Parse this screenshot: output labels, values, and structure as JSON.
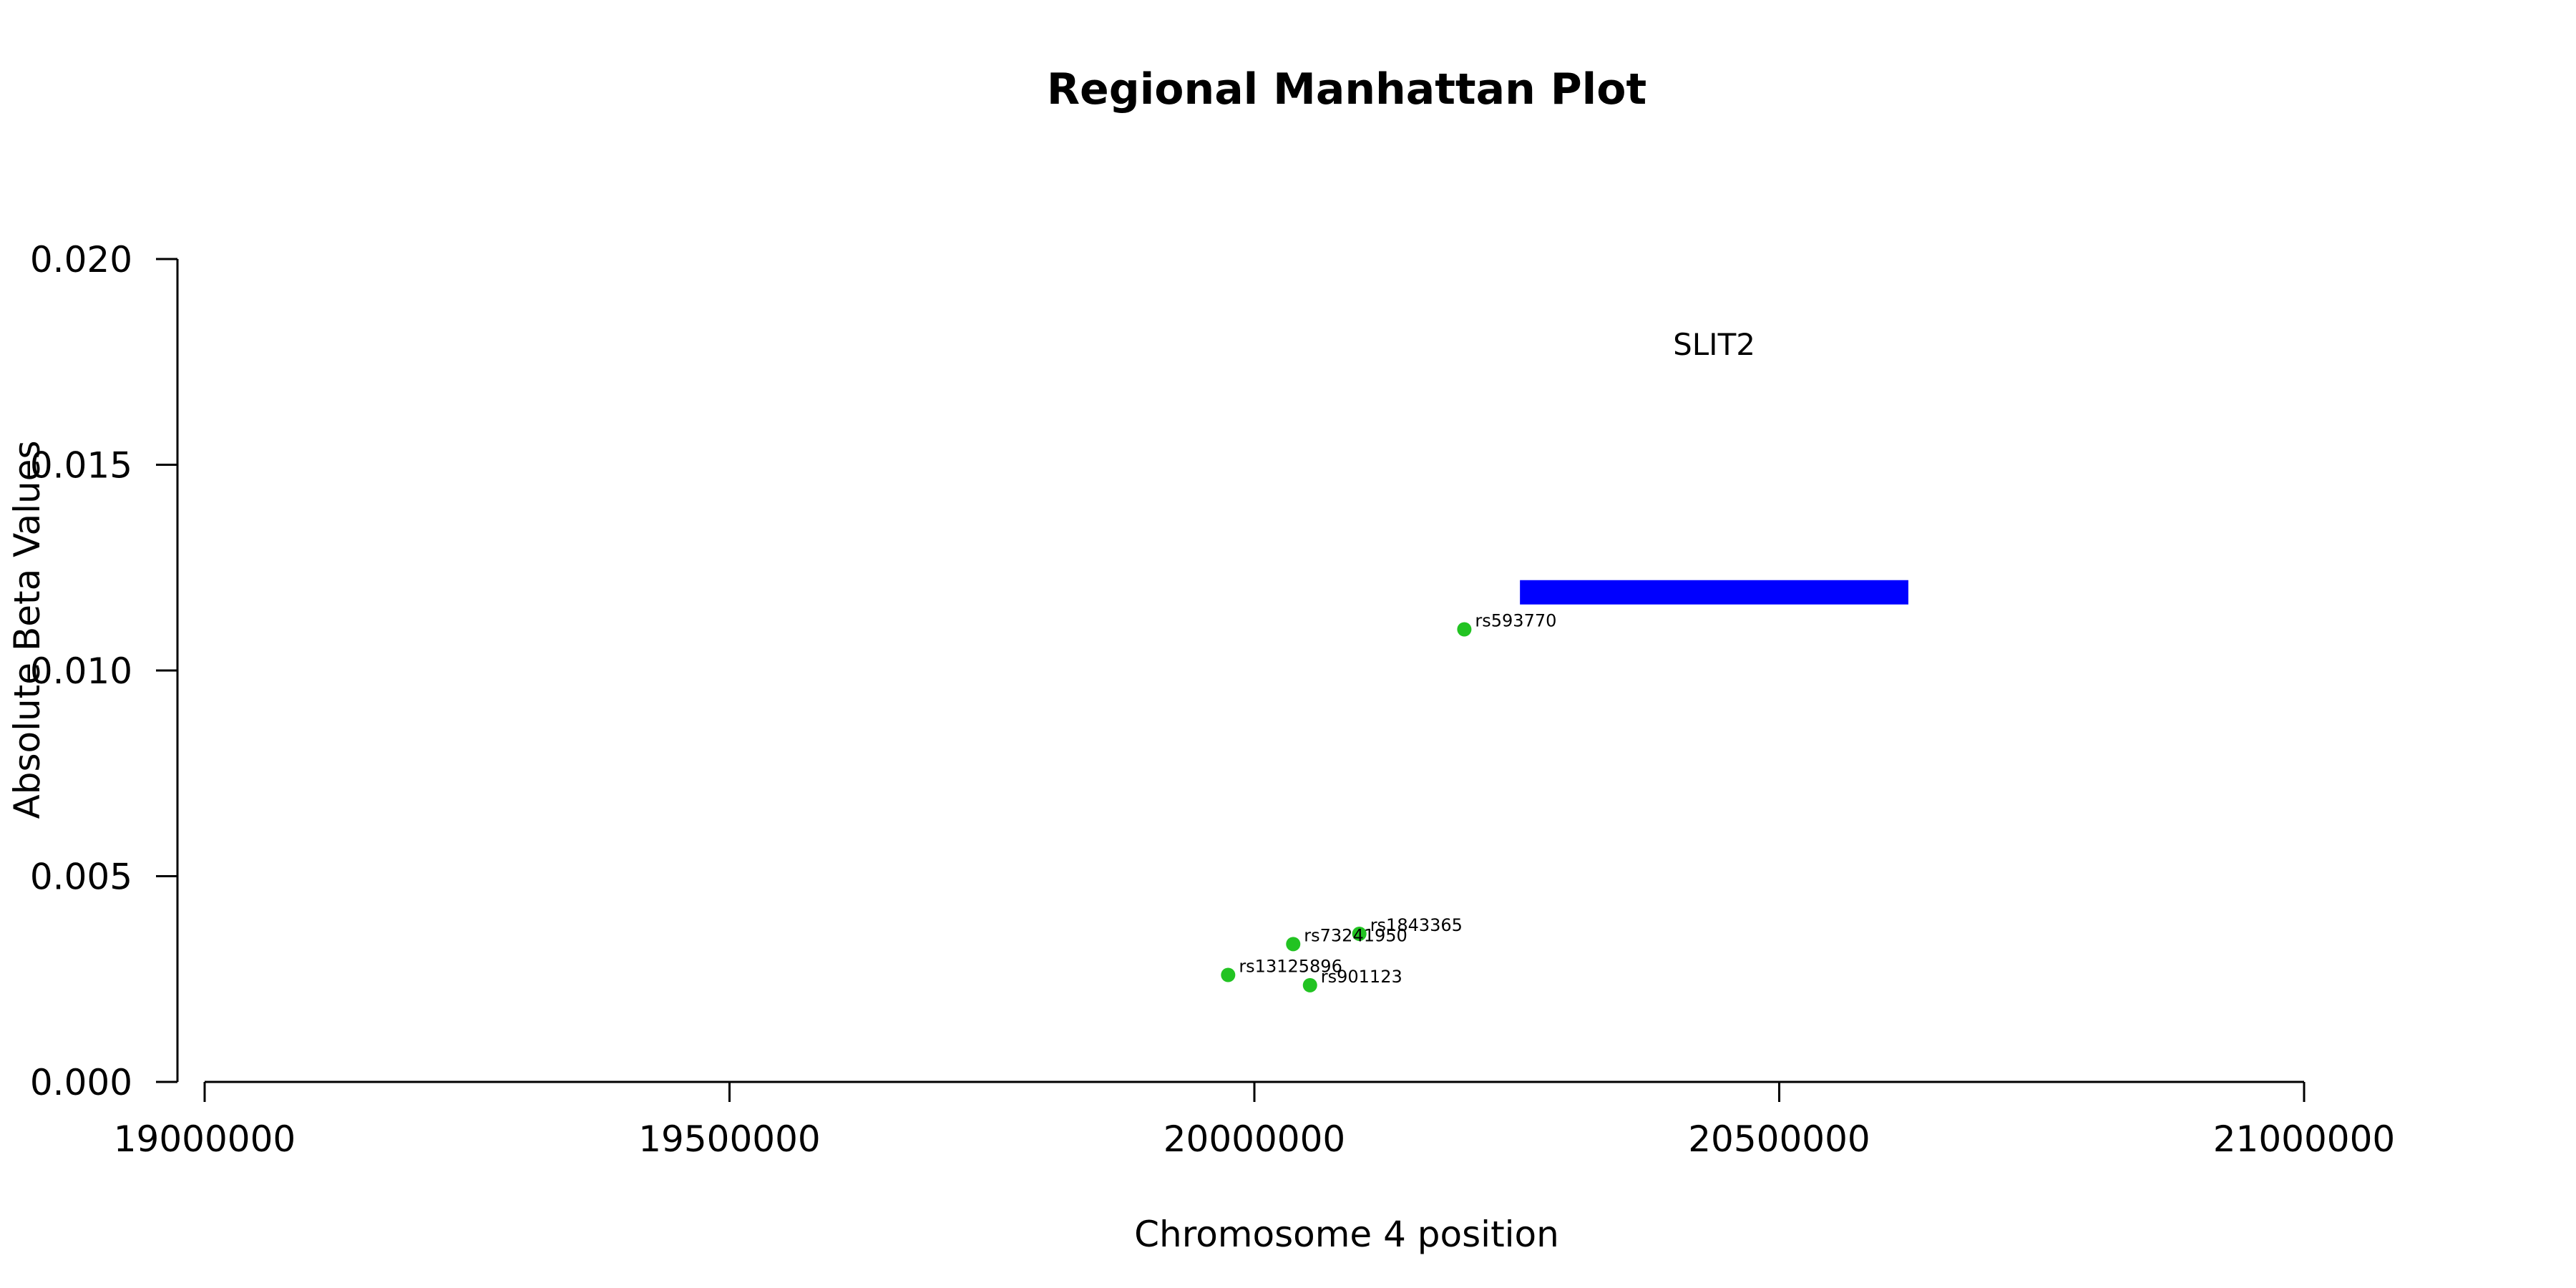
{
  "chart_data": {
    "type": "scatter",
    "title": "Regional Manhattan Plot",
    "xlabel": "Chromosome 4 position",
    "ylabel": "Absolute Beta Values",
    "xlim": [
      19000000,
      21000000
    ],
    "ylim": [
      0,
      0.02
    ],
    "x_ticks": [
      19000000,
      19500000,
      20000000,
      20500000,
      21000000
    ],
    "x_tick_labels": [
      "19000000",
      "19500000",
      "20000000",
      "20500000",
      "21000000"
    ],
    "y_ticks": [
      0,
      0.005,
      0.01,
      0.015,
      0.02
    ],
    "y_tick_labels": [
      "0.000",
      "0.005",
      "0.010",
      "0.015",
      "0.020"
    ],
    "grid": false,
    "point_color": "#22c322",
    "points": [
      {
        "label": "rs593770",
        "x": 20200000,
        "y": 0.011
      },
      {
        "label": "rs1843365",
        "x": 20100000,
        "y": 0.0036
      },
      {
        "label": "rs73241950",
        "x": 20037000,
        "y": 0.00335
      },
      {
        "label": "rs13125896",
        "x": 19975000,
        "y": 0.0026
      },
      {
        "label": "rs901123",
        "x": 20053000,
        "y": 0.00235
      }
    ],
    "gene": {
      "name": "SLIT2",
      "start": 20253000,
      "end": 20623000,
      "y": 0.0119,
      "color": "#0000ff"
    }
  }
}
